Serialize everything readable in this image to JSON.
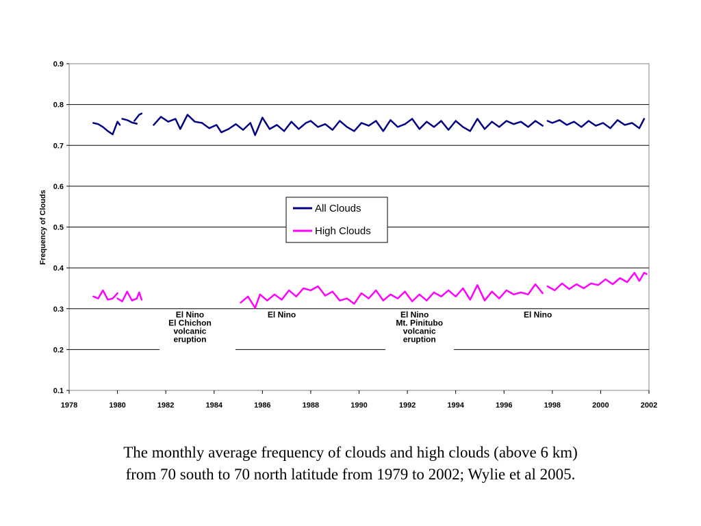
{
  "chart_data": {
    "type": "line",
    "title": "",
    "xlabel": "",
    "ylabel": "Frequency of Clouds",
    "xlim": [
      1978,
      2002
    ],
    "ylim": [
      0.1,
      0.9
    ],
    "x_ticks": [
      1978,
      1980,
      1982,
      1984,
      1986,
      1988,
      1990,
      1992,
      1994,
      1996,
      1998,
      2000,
      2002
    ],
    "y_ticks": [
      0.1,
      0.2,
      0.3,
      0.4,
      0.5,
      0.6,
      0.7,
      0.8,
      0.9
    ],
    "y_tick_labels": [
      "0.1",
      "0.2",
      "0.3",
      "0.4",
      "0.5",
      "0.6",
      "0.7",
      "0.8",
      "0.9"
    ],
    "grid": "horizontal",
    "legend": "center",
    "series": [
      {
        "name": "All Clouds",
        "color": "#000080",
        "segments": [
          [
            [
              1979.0,
              0.755
            ],
            [
              1979.2,
              0.752
            ],
            [
              1979.4,
              0.745
            ],
            [
              1979.6,
              0.735
            ],
            [
              1979.8,
              0.727
            ],
            [
              1980.0,
              0.758
            ],
            [
              1980.1,
              0.75
            ]
          ],
          [
            [
              1980.2,
              0.765
            ],
            [
              1980.4,
              0.762
            ],
            [
              1980.6,
              0.756
            ],
            [
              1980.8,
              0.753
            ]
          ],
          [
            [
              1980.7,
              0.76
            ],
            [
              1980.9,
              0.775
            ],
            [
              1981.0,
              0.778
            ]
          ],
          [
            [
              1981.5,
              0.75
            ],
            [
              1981.8,
              0.77
            ],
            [
              1982.1,
              0.758
            ],
            [
              1982.4,
              0.765
            ],
            [
              1982.6,
              0.74
            ],
            [
              1982.9,
              0.775
            ],
            [
              1983.2,
              0.758
            ],
            [
              1983.5,
              0.755
            ],
            [
              1983.8,
              0.742
            ],
            [
              1984.1,
              0.75
            ],
            [
              1984.3,
              0.732
            ],
            [
              1984.6,
              0.74
            ],
            [
              1984.9,
              0.752
            ],
            [
              1985.2,
              0.738
            ],
            [
              1985.5,
              0.755
            ],
            [
              1985.7,
              0.725
            ],
            [
              1986.0,
              0.768
            ],
            [
              1986.3,
              0.74
            ],
            [
              1986.6,
              0.75
            ],
            [
              1986.9,
              0.735
            ],
            [
              1987.2,
              0.758
            ],
            [
              1987.5,
              0.74
            ],
            [
              1987.8,
              0.755
            ],
            [
              1988.0,
              0.76
            ],
            [
              1988.3,
              0.745
            ],
            [
              1988.6,
              0.752
            ],
            [
              1988.9,
              0.738
            ],
            [
              1989.2,
              0.76
            ],
            [
              1989.5,
              0.745
            ],
            [
              1989.8,
              0.735
            ],
            [
              1990.1,
              0.755
            ],
            [
              1990.4,
              0.748
            ],
            [
              1990.7,
              0.76
            ],
            [
              1991.0,
              0.735
            ],
            [
              1991.3,
              0.762
            ],
            [
              1991.6,
              0.745
            ],
            [
              1991.9,
              0.752
            ],
            [
              1992.2,
              0.765
            ],
            [
              1992.5,
              0.74
            ],
            [
              1992.8,
              0.758
            ],
            [
              1993.1,
              0.745
            ],
            [
              1993.4,
              0.76
            ],
            [
              1993.7,
              0.738
            ],
            [
              1994.0,
              0.76
            ],
            [
              1994.3,
              0.745
            ],
            [
              1994.6,
              0.735
            ],
            [
              1994.9,
              0.765
            ],
            [
              1995.2,
              0.74
            ],
            [
              1995.5,
              0.758
            ],
            [
              1995.8,
              0.745
            ],
            [
              1996.1,
              0.76
            ],
            [
              1996.4,
              0.752
            ],
            [
              1996.7,
              0.758
            ],
            [
              1997.0,
              0.745
            ],
            [
              1997.3,
              0.76
            ],
            [
              1997.6,
              0.748
            ]
          ],
          [
            [
              1997.8,
              0.76
            ],
            [
              1998.0,
              0.755
            ],
            [
              1998.3,
              0.762
            ],
            [
              1998.6,
              0.75
            ],
            [
              1998.9,
              0.758
            ],
            [
              1999.2,
              0.745
            ],
            [
              1999.5,
              0.76
            ],
            [
              1999.8,
              0.748
            ],
            [
              2000.1,
              0.755
            ],
            [
              2000.4,
              0.742
            ],
            [
              2000.7,
              0.762
            ],
            [
              2001.0,
              0.75
            ],
            [
              2001.3,
              0.755
            ],
            [
              2001.6,
              0.742
            ],
            [
              2001.8,
              0.765
            ]
          ]
        ]
      },
      {
        "name": "High Clouds",
        "color": "#ff00ff",
        "segments": [
          [
            [
              1979.0,
              0.33
            ],
            [
              1979.2,
              0.325
            ],
            [
              1979.4,
              0.345
            ],
            [
              1979.6,
              0.322
            ],
            [
              1979.8,
              0.325
            ],
            [
              1980.0,
              0.338
            ]
          ],
          [
            [
              1980.0,
              0.325
            ],
            [
              1980.2,
              0.318
            ],
            [
              1980.4,
              0.342
            ],
            [
              1980.6,
              0.32
            ],
            [
              1980.8,
              0.325
            ],
            [
              1980.9,
              0.34
            ],
            [
              1981.0,
              0.322
            ]
          ],
          [
            [
              1985.1,
              0.315
            ],
            [
              1985.4,
              0.33
            ],
            [
              1985.7,
              0.302
            ],
            [
              1985.9,
              0.335
            ],
            [
              1986.2,
              0.32
            ],
            [
              1986.5,
              0.335
            ],
            [
              1986.8,
              0.322
            ],
            [
              1987.1,
              0.345
            ],
            [
              1987.4,
              0.33
            ],
            [
              1987.7,
              0.35
            ],
            [
              1988.0,
              0.345
            ],
            [
              1988.3,
              0.355
            ],
            [
              1988.6,
              0.332
            ],
            [
              1988.9,
              0.342
            ],
            [
              1989.2,
              0.32
            ],
            [
              1989.5,
              0.325
            ],
            [
              1989.8,
              0.312
            ],
            [
              1990.1,
              0.338
            ],
            [
              1990.4,
              0.325
            ],
            [
              1990.7,
              0.345
            ],
            [
              1991.0,
              0.32
            ],
            [
              1991.3,
              0.335
            ],
            [
              1991.6,
              0.325
            ],
            [
              1991.9,
              0.342
            ],
            [
              1992.2,
              0.318
            ],
            [
              1992.5,
              0.335
            ],
            [
              1992.8,
              0.32
            ],
            [
              1993.1,
              0.34
            ],
            [
              1993.4,
              0.33
            ],
            [
              1993.7,
              0.345
            ],
            [
              1994.0,
              0.33
            ],
            [
              1994.3,
              0.35
            ],
            [
              1994.6,
              0.322
            ],
            [
              1994.9,
              0.358
            ],
            [
              1995.2,
              0.32
            ],
            [
              1995.5,
              0.342
            ],
            [
              1995.8,
              0.325
            ],
            [
              1996.1,
              0.345
            ],
            [
              1996.4,
              0.335
            ],
            [
              1996.7,
              0.34
            ],
            [
              1997.0,
              0.335
            ],
            [
              1997.3,
              0.36
            ],
            [
              1997.6,
              0.338
            ]
          ],
          [
            [
              1997.8,
              0.355
            ],
            [
              1998.1,
              0.345
            ],
            [
              1998.4,
              0.362
            ],
            [
              1998.7,
              0.348
            ],
            [
              1999.0,
              0.36
            ],
            [
              1999.3,
              0.35
            ],
            [
              1999.6,
              0.362
            ],
            [
              1999.9,
              0.358
            ],
            [
              2000.2,
              0.372
            ],
            [
              2000.5,
              0.36
            ],
            [
              2000.8,
              0.375
            ],
            [
              2001.1,
              0.365
            ],
            [
              2001.4,
              0.388
            ],
            [
              2001.6,
              0.368
            ],
            [
              2001.8,
              0.388
            ],
            [
              2001.9,
              0.385
            ]
          ]
        ]
      }
    ],
    "annotations": [
      {
        "x": 1983.0,
        "y": 0.285,
        "text": "El Nino"
      },
      {
        "x": 1983.0,
        "y": 0.265,
        "text": "El Chichon"
      },
      {
        "x": 1983.0,
        "y": 0.245,
        "text": "volcanic"
      },
      {
        "x": 1983.0,
        "y": 0.225,
        "text": "eruption"
      },
      {
        "x": 1986.8,
        "y": 0.285,
        "text": "El Nino"
      },
      {
        "x": 1992.3,
        "y": 0.285,
        "text": "El Nino"
      },
      {
        "x": 1992.5,
        "y": 0.265,
        "text": "Mt. Pinitubo"
      },
      {
        "x": 1992.5,
        "y": 0.245,
        "text": "volcanic"
      },
      {
        "x": 1992.5,
        "y": 0.225,
        "text": "eruption"
      },
      {
        "x": 1997.4,
        "y": 0.285,
        "text": "El Nino"
      }
    ]
  },
  "caption": {
    "line1": "The monthly average frequency of clouds and high clouds (above 6 km)",
    "line2": "from 70 south to 70 north latitude from 1979 to 2002; Wylie et al 2005."
  }
}
